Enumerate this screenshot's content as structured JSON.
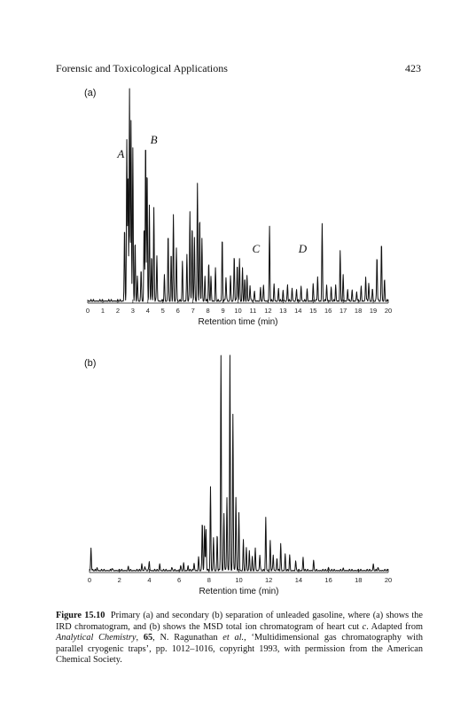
{
  "header": {
    "title": "Forensic and Toxicological Applications",
    "page_number": "423"
  },
  "figure": {
    "panel_a_label": "(a)",
    "panel_b_label": "(b)",
    "caption": {
      "label": "Figure 15.10",
      "part1": "Primary (a) and secondary (b) separation of unleaded gasoline, where (a) shows the IRD chromatogram, and (b) shows the MSD total ion chromatogram of heart cut ",
      "part1_italic": "c",
      "part2": ". Adapted from ",
      "journal": "Analytical Chemistry",
      "part3": ", ",
      "volume": "65",
      "part4": ", N. Ragunathan ",
      "etal": "et al.",
      "part5": ", ‘Multidimensional gas chromatography with parallel cryogenic traps’, pp. 1012–1016, copyright 1993, with permission from the American Chemical Society."
    }
  },
  "chart_data": [
    {
      "type": "line",
      "panel": "(a)",
      "xlabel": "Retention time (min)",
      "ylabel": "",
      "xlim": [
        0,
        20
      ],
      "xticks": [
        "0",
        "1",
        "2",
        "3",
        "4",
        "5",
        "6",
        "7",
        "8",
        "9",
        "10",
        "11",
        "12",
        "13",
        "14",
        "15",
        "16",
        "17",
        "18",
        "19",
        "20"
      ],
      "annotations": [
        {
          "text": "A",
          "x": 2.2
        },
        {
          "text": "B",
          "x": 4.4
        },
        {
          "text": "C",
          "x": 11.2
        },
        {
          "text": "D",
          "x": 14.3
        }
      ],
      "peaks": [
        [
          2.45,
          0.35
        ],
        [
          2.6,
          0.75
        ],
        [
          2.68,
          0.58
        ],
        [
          2.78,
          1.0
        ],
        [
          2.88,
          0.85
        ],
        [
          3.0,
          0.72
        ],
        [
          3.15,
          0.28
        ],
        [
          3.3,
          0.12
        ],
        [
          3.55,
          0.15
        ],
        [
          3.75,
          0.35
        ],
        [
          3.85,
          0.78
        ],
        [
          3.95,
          0.62
        ],
        [
          4.1,
          0.45
        ],
        [
          4.25,
          0.22
        ],
        [
          4.4,
          0.44
        ],
        [
          4.6,
          0.22
        ],
        [
          5.1,
          0.12
        ],
        [
          5.35,
          0.32
        ],
        [
          5.55,
          0.22
        ],
        [
          5.7,
          0.4
        ],
        [
          5.9,
          0.25
        ],
        [
          6.3,
          0.18
        ],
        [
          6.6,
          0.22
        ],
        [
          6.8,
          0.43
        ],
        [
          6.95,
          0.36
        ],
        [
          7.1,
          0.3
        ],
        [
          7.3,
          0.55
        ],
        [
          7.45,
          0.4
        ],
        [
          7.6,
          0.3
        ],
        [
          7.8,
          0.12
        ],
        [
          8.05,
          0.18
        ],
        [
          8.2,
          0.12
        ],
        [
          8.5,
          0.15
        ],
        [
          8.95,
          0.3
        ],
        [
          9.2,
          0.12
        ],
        [
          9.5,
          0.12
        ],
        [
          9.75,
          0.22
        ],
        [
          9.95,
          0.18
        ],
        [
          10.1,
          0.2
        ],
        [
          10.3,
          0.15
        ],
        [
          10.45,
          0.1
        ],
        [
          10.6,
          0.12
        ],
        [
          10.8,
          0.08
        ],
        [
          11.1,
          0.05
        ],
        [
          11.5,
          0.06
        ],
        [
          11.7,
          0.08
        ],
        [
          12.1,
          0.35
        ],
        [
          12.4,
          0.08
        ],
        [
          12.7,
          0.06
        ],
        [
          13.0,
          0.05
        ],
        [
          13.3,
          0.08
        ],
        [
          13.6,
          0.06
        ],
        [
          13.9,
          0.06
        ],
        [
          14.2,
          0.07
        ],
        [
          14.6,
          0.05
        ],
        [
          15.0,
          0.08
        ],
        [
          15.3,
          0.12
        ],
        [
          15.6,
          0.36
        ],
        [
          15.9,
          0.08
        ],
        [
          16.2,
          0.06
        ],
        [
          16.5,
          0.08
        ],
        [
          16.8,
          0.23
        ],
        [
          17.0,
          0.12
        ],
        [
          17.3,
          0.06
        ],
        [
          17.6,
          0.05
        ],
        [
          17.9,
          0.05
        ],
        [
          18.2,
          0.07
        ],
        [
          18.5,
          0.12
        ],
        [
          18.7,
          0.09
        ],
        [
          18.95,
          0.06
        ],
        [
          19.25,
          0.22
        ],
        [
          19.55,
          0.28
        ],
        [
          19.75,
          0.1
        ]
      ]
    },
    {
      "type": "line",
      "panel": "(b)",
      "xlabel": "Retention time (min)",
      "ylabel": "",
      "xlim": [
        0,
        20
      ],
      "xticks": [
        "0",
        "2",
        "4",
        "6",
        "8",
        "10",
        "12",
        "14",
        "16",
        "18",
        "20"
      ],
      "peaks": [
        [
          0.1,
          0.14
        ],
        [
          0.5,
          0.02
        ],
        [
          1.5,
          0.02
        ],
        [
          2.6,
          0.02
        ],
        [
          3.5,
          0.04
        ],
        [
          3.7,
          0.03
        ],
        [
          4.0,
          0.06
        ],
        [
          4.7,
          0.04
        ],
        [
          5.5,
          0.02
        ],
        [
          6.1,
          0.03
        ],
        [
          6.3,
          0.04
        ],
        [
          6.6,
          0.03
        ],
        [
          7.0,
          0.05
        ],
        [
          7.3,
          0.08
        ],
        [
          7.55,
          0.3
        ],
        [
          7.7,
          0.27
        ],
        [
          7.8,
          0.25
        ],
        [
          8.1,
          0.5
        ],
        [
          8.3,
          0.2
        ],
        [
          8.55,
          0.22
        ],
        [
          8.8,
          1.3
        ],
        [
          9.0,
          0.35
        ],
        [
          9.2,
          0.45
        ],
        [
          9.4,
          1.3
        ],
        [
          9.6,
          0.95
        ],
        [
          9.8,
          0.45
        ],
        [
          10.0,
          0.35
        ],
        [
          10.3,
          0.18
        ],
        [
          10.5,
          0.14
        ],
        [
          10.7,
          0.12
        ],
        [
          10.9,
          0.08
        ],
        [
          11.1,
          0.14
        ],
        [
          11.4,
          0.1
        ],
        [
          11.8,
          0.32
        ],
        [
          12.1,
          0.18
        ],
        [
          12.3,
          0.1
        ],
        [
          12.55,
          0.08
        ],
        [
          12.8,
          0.16
        ],
        [
          13.1,
          0.1
        ],
        [
          13.4,
          0.09
        ],
        [
          13.8,
          0.06
        ],
        [
          14.3,
          0.08
        ],
        [
          15.0,
          0.06
        ],
        [
          16.0,
          0.02
        ],
        [
          17.0,
          0.01
        ],
        [
          19.0,
          0.04
        ],
        [
          19.3,
          0.02
        ]
      ]
    }
  ]
}
